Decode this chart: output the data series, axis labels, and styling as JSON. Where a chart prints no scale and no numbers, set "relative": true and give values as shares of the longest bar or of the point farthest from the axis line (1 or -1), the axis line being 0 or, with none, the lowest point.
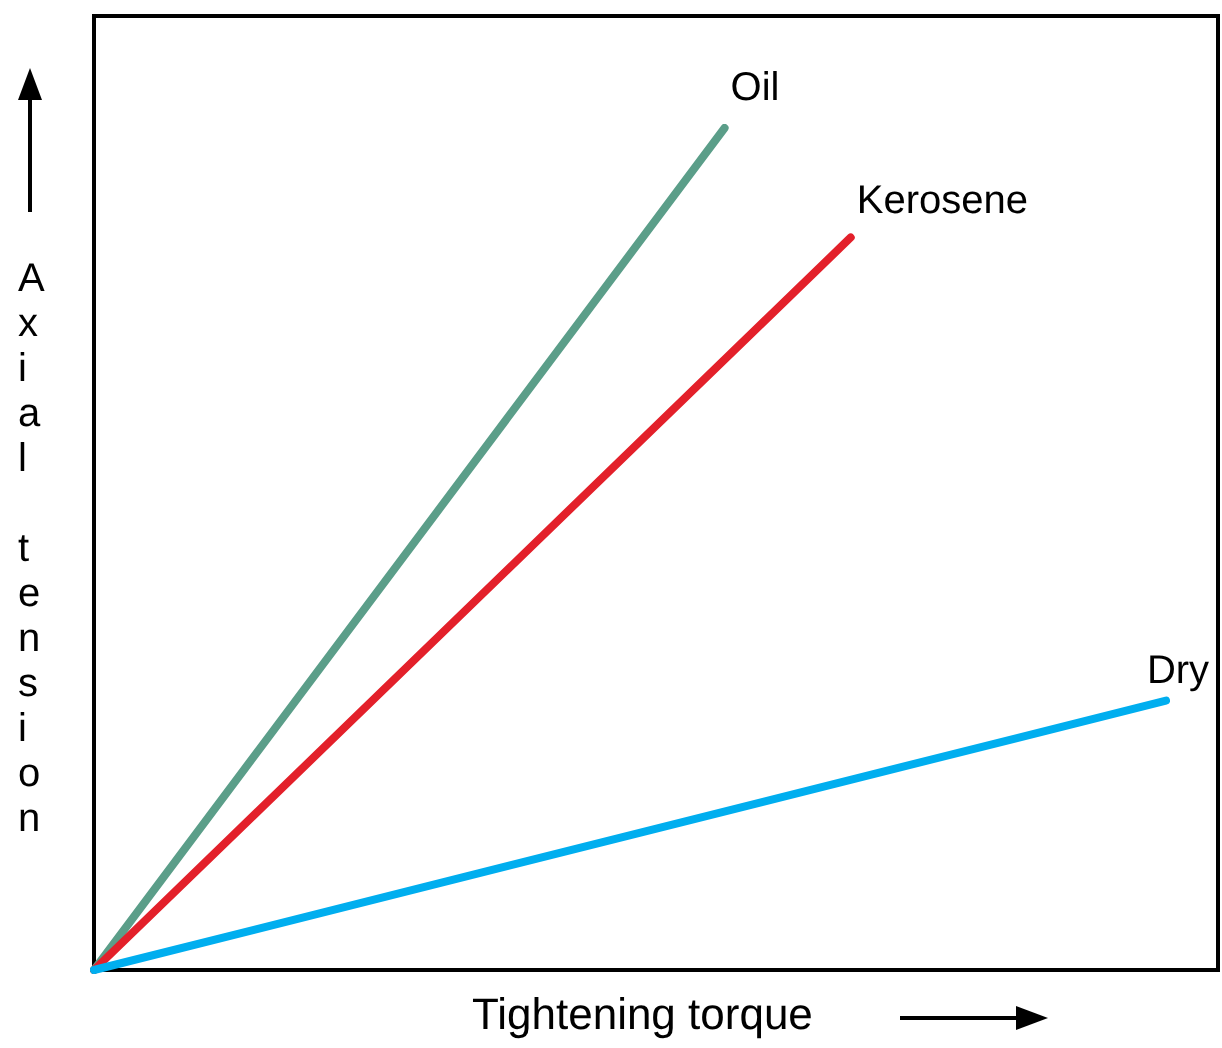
{
  "chart_data": {
    "type": "line",
    "relative": true,
    "xlabel": "Tightening torque",
    "ylabel": "Axial tension",
    "legend": false,
    "marker": "none",
    "line_style": "solid",
    "categories": [
      null,
      null,
      null,
      null,
      null,
      null,
      null,
      null,
      null,
      null,
      null,
      null,
      null,
      null,
      null,
      null,
      null,
      null
    ],
    "series": [
      {
        "name": "Oil",
        "color": "#5b9e89",
        "values": [
          0,
          null,
          null,
          null,
          null,
          null,
          null,
          null,
          null,
          null,
          1,
          null,
          null,
          null,
          null,
          null,
          null,
          null
        ]
      },
      {
        "name": "Kerosene",
        "color": "#e3202a",
        "values": [
          0,
          null,
          null,
          null,
          null,
          null,
          null,
          null,
          null,
          null,
          null,
          null,
          0.87,
          null,
          null,
          null,
          null,
          null
        ]
      },
      {
        "name": "Dry",
        "color": "#00aeef",
        "values": [
          0,
          null,
          null,
          null,
          null,
          null,
          null,
          null,
          null,
          null,
          null,
          null,
          null,
          null,
          null,
          null,
          null,
          0.32
        ]
      }
    ]
  }
}
